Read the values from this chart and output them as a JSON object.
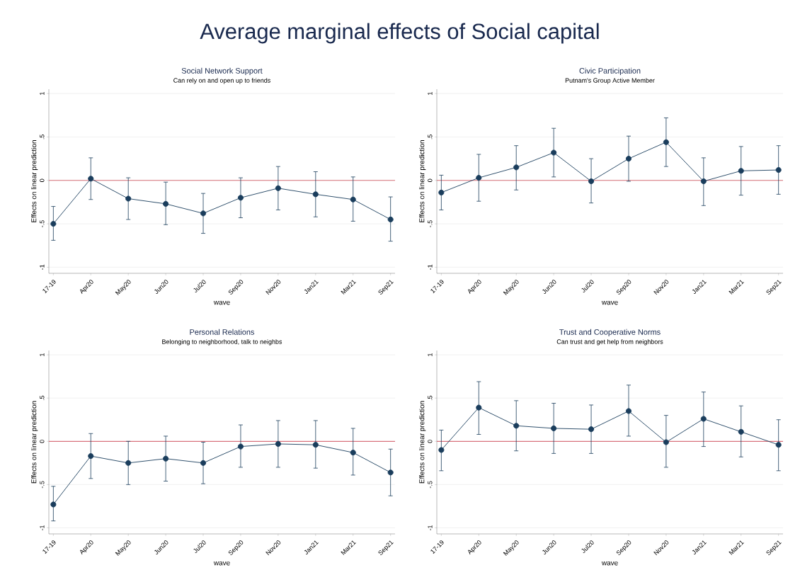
{
  "chart_data": [
    {
      "type": "other",
      "title": "Average marginal effects of Social capital"
    },
    {
      "type": "line",
      "title": "Social Network Support",
      "subtitle": "Can rely on and open up to friends",
      "xlabel": "wave",
      "ylabel": "Effects on linear prediction",
      "categories": [
        "17-19",
        "Apr20",
        "May20",
        "Jun20",
        "Jul20",
        "Sep20",
        "Nov20",
        "Jan21",
        "Mar21",
        "Sep21"
      ],
      "series": [
        {
          "color": "#1a3d5c",
          "values": [
            -0.5,
            0.02,
            -0.21,
            -0.27,
            -0.38,
            -0.2,
            -0.09,
            -0.16,
            -0.22,
            -0.45
          ],
          "errors": [
            [
              -0.69,
              -0.3
            ],
            [
              -0.22,
              0.26
            ],
            [
              -0.45,
              0.03
            ],
            [
              -0.51,
              -0.02
            ],
            [
              -0.61,
              -0.15
            ],
            [
              -0.43,
              0.03
            ],
            [
              -0.34,
              0.16
            ],
            [
              -0.42,
              0.1
            ],
            [
              -0.47,
              0.04
            ],
            [
              -0.7,
              -0.19
            ]
          ]
        }
      ],
      "ylim": [
        -1.07,
        1.05
      ],
      "yticks": [
        {
          "value": -1,
          "label": "-1"
        },
        {
          "value": -0.5,
          "label": "-.5"
        },
        {
          "value": 0,
          "label": "0"
        },
        {
          "value": 0.5,
          "label": ".5"
        },
        {
          "value": 1,
          "label": "1"
        }
      ],
      "grid": "y",
      "marker": "circle",
      "line_style": "solid",
      "ref_lines": [
        {
          "axis": "y",
          "value": 0,
          "color": "#d9737d"
        }
      ]
    },
    {
      "type": "line",
      "title": "Civic Participation",
      "subtitle": "Putnam's Group Active Member",
      "xlabel": "wave",
      "ylabel": "Effects on linear prediction",
      "categories": [
        "17-19",
        "Apr20",
        "May20",
        "Jun20",
        "Jul20",
        "Sep20",
        "Nov20",
        "Jan21",
        "Mar21",
        "Sep21"
      ],
      "series": [
        {
          "color": "#1a3d5c",
          "values": [
            -0.14,
            0.03,
            0.15,
            0.32,
            -0.01,
            0.25,
            0.44,
            -0.01,
            0.11,
            0.12
          ],
          "errors": [
            [
              -0.34,
              0.06
            ],
            [
              -0.24,
              0.3
            ],
            [
              -0.11,
              0.4
            ],
            [
              0.04,
              0.6
            ],
            [
              -0.26,
              0.25
            ],
            [
              -0.01,
              0.51
            ],
            [
              0.16,
              0.72
            ],
            [
              -0.29,
              0.26
            ],
            [
              -0.17,
              0.39
            ],
            [
              -0.16,
              0.4
            ]
          ]
        }
      ],
      "ylim": [
        -1.07,
        1.05
      ],
      "yticks": [
        {
          "value": -1,
          "label": "-1"
        },
        {
          "value": -0.5,
          "label": "-.5"
        },
        {
          "value": 0,
          "label": "0"
        },
        {
          "value": 0.5,
          "label": ".5"
        },
        {
          "value": 1,
          "label": "1"
        }
      ],
      "grid": "y",
      "marker": "circle",
      "line_style": "solid",
      "ref_lines": [
        {
          "axis": "y",
          "value": 0,
          "color": "#d9737d"
        }
      ]
    },
    {
      "type": "line",
      "title": "Personal Relations",
      "subtitle": "Belonging to neighborhood, talk to neighbs",
      "xlabel": "wave",
      "ylabel": "Effects on linear prediction",
      "categories": [
        "17-19",
        "Apr20",
        "May20",
        "Jun20",
        "Jul20",
        "Sep20",
        "Nov20",
        "Jan21",
        "Mar21",
        "Sep21"
      ],
      "series": [
        {
          "color": "#1a3d5c",
          "values": [
            -0.73,
            -0.17,
            -0.25,
            -0.2,
            -0.25,
            -0.06,
            -0.03,
            -0.04,
            -0.13,
            -0.36
          ],
          "errors": [
            [
              -0.92,
              -0.52
            ],
            [
              -0.43,
              0.09
            ],
            [
              -0.5,
              0.0
            ],
            [
              -0.46,
              0.06
            ],
            [
              -0.49,
              -0.01
            ],
            [
              -0.3,
              0.19
            ],
            [
              -0.3,
              0.24
            ],
            [
              -0.31,
              0.24
            ],
            [
              -0.39,
              0.15
            ],
            [
              -0.63,
              -0.09
            ]
          ]
        }
      ],
      "ylim": [
        -1.07,
        1.05
      ],
      "yticks": [
        {
          "value": -1,
          "label": "-1"
        },
        {
          "value": -0.5,
          "label": "-.5"
        },
        {
          "value": 0,
          "label": "0"
        },
        {
          "value": 0.5,
          "label": ".5"
        },
        {
          "value": 1,
          "label": "1"
        }
      ],
      "grid": "y",
      "marker": "circle",
      "line_style": "solid",
      "ref_lines": [
        {
          "axis": "y",
          "value": 0,
          "color": "#d9737d"
        }
      ]
    },
    {
      "type": "line",
      "title": "Trust and Cooperative Norms",
      "subtitle": "Can trust and get help from neighbors",
      "xlabel": "wave",
      "ylabel": "Effects on linear prediction",
      "categories": [
        "17-19",
        "Apr20",
        "May20",
        "Jun20",
        "Jul20",
        "Sep20",
        "Nov20",
        "Jan21",
        "Mar21",
        "Sep21"
      ],
      "series": [
        {
          "color": "#1a3d5c",
          "values": [
            -0.1,
            0.39,
            0.18,
            0.15,
            0.14,
            0.35,
            -0.01,
            0.26,
            0.11,
            -0.04
          ],
          "errors": [
            [
              -0.34,
              0.13
            ],
            [
              0.08,
              0.69
            ],
            [
              -0.11,
              0.47
            ],
            [
              -0.14,
              0.44
            ],
            [
              -0.14,
              0.42
            ],
            [
              0.06,
              0.65
            ],
            [
              -0.3,
              0.3
            ],
            [
              -0.06,
              0.57
            ],
            [
              -0.18,
              0.41
            ],
            [
              -0.34,
              0.25
            ]
          ]
        }
      ],
      "ylim": [
        -1.07,
        1.05
      ],
      "yticks": [
        {
          "value": -1,
          "label": "-1"
        },
        {
          "value": -0.5,
          "label": "-.5"
        },
        {
          "value": 0,
          "label": "0"
        },
        {
          "value": 0.5,
          "label": ".5"
        },
        {
          "value": 1,
          "label": "1"
        }
      ],
      "grid": "y",
      "marker": "circle",
      "line_style": "solid",
      "ref_lines": [
        {
          "axis": "y",
          "value": 0,
          "color": "#d9737d"
        }
      ]
    }
  ]
}
